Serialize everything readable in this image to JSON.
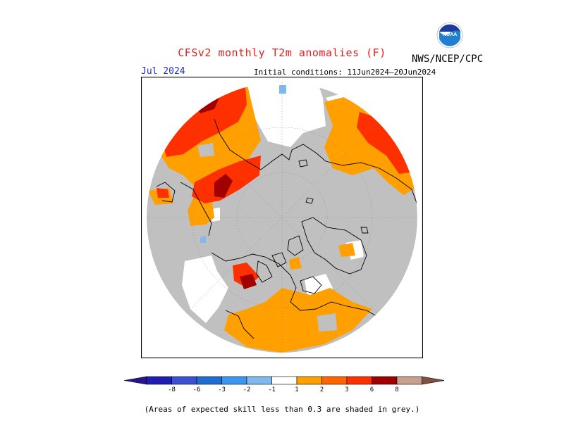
{
  "title": "CFSv2 monthly T2m anomalies (F)",
  "org_label": "NWS/NCEP/CPC",
  "logo_icon": "noaa-logo-icon",
  "logo_text": "NOAA",
  "valid_month": "Jul 2024",
  "initial_conditions": "Initial conditions: 11Jun2024–20Jun2024",
  "footnote": "(Areas of expected skill less than 0.3 are shaded in grey.)",
  "colors": {
    "grey_low_skill": "#c0c0c0",
    "neutral": "#ffffff",
    "warm_1_2": "#ffa000",
    "warm_2_3": "#ff3000",
    "warm_3_6": "#a00000",
    "cool_1_2": "#80b8f0"
  },
  "colorbar": {
    "bins": [
      {
        "color": "#1e1eb4"
      },
      {
        "color": "#3c50d2"
      },
      {
        "color": "#1e6ed2"
      },
      {
        "color": "#3c96f0"
      },
      {
        "color": "#80b8f0"
      },
      {
        "color": "#ffffff"
      },
      {
        "color": "#ffa000"
      },
      {
        "color": "#ff6400"
      },
      {
        "color": "#ff3000"
      },
      {
        "color": "#a00000"
      },
      {
        "color": "#c8a090"
      }
    ],
    "under_color": "#28148c",
    "over_color": "#805040",
    "ticks": [
      "-8",
      "-6",
      "-3",
      "-2",
      "-1",
      "1",
      "2",
      "3",
      "6",
      "8"
    ]
  }
}
